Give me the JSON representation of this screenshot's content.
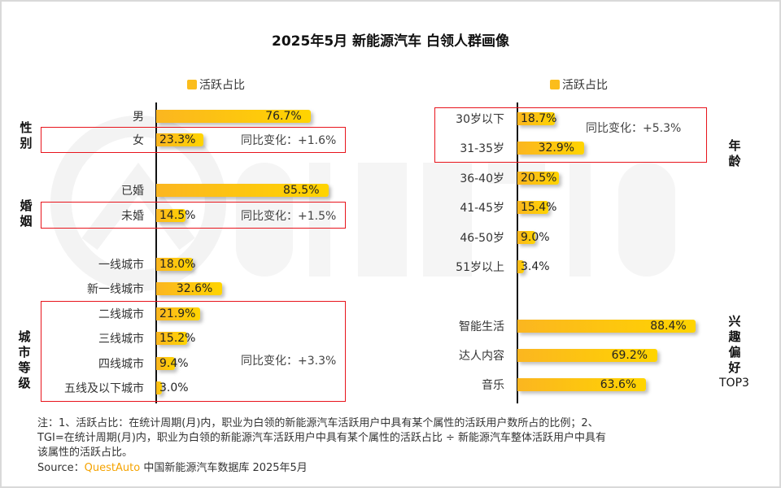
{
  "title": "2025年5月 新能源汽车 白领人群画像",
  "watermark": "QUESTAUTO",
  "chart_data": [
    {
      "type": "bar",
      "orientation": "horizontal",
      "legend": "活跃占比",
      "legend_position": "top",
      "unit": "%",
      "groups": [
        {
          "name": "性别",
          "categories": [
            "男",
            "女"
          ],
          "values": [
            76.7,
            23.3
          ],
          "change": {
            "label": "同比变化：+1.6%",
            "applies_to": [
              "女"
            ]
          }
        },
        {
          "name": "婚姻",
          "categories": [
            "已婚",
            "未婚"
          ],
          "values": [
            85.5,
            14.5
          ],
          "change": {
            "label": "同比变化：+1.5%",
            "applies_to": [
              "未婚"
            ]
          }
        },
        {
          "name": "城市等级",
          "categories": [
            "一线城市",
            "新一线城市",
            "二线城市",
            "三线城市",
            "四线城市",
            "五线及以下城市"
          ],
          "values": [
            18.0,
            32.6,
            21.9,
            15.2,
            9.4,
            3.0
          ],
          "change": {
            "label": "同比变化：+3.3%",
            "applies_to": [
              "二线城市",
              "三线城市",
              "四线城市",
              "五线及以下城市"
            ]
          }
        }
      ]
    },
    {
      "type": "bar",
      "orientation": "horizontal",
      "legend": "活跃占比",
      "legend_position": "top",
      "unit": "%",
      "groups": [
        {
          "name": "年龄",
          "categories": [
            "30岁以下",
            "31-35岁",
            "36-40岁",
            "41-45岁",
            "46-50岁",
            "51岁以上"
          ],
          "values": [
            18.7,
            32.9,
            20.5,
            15.4,
            9.0,
            3.4
          ],
          "change": {
            "label": "同比变化：+5.3%",
            "applies_to": [
              "30岁以下",
              "31-35岁"
            ]
          }
        },
        {
          "name": "兴趣偏好TOP3",
          "categories": [
            "智能生活",
            "达人内容",
            "音乐"
          ],
          "values": [
            88.4,
            69.2,
            63.6
          ]
        }
      ]
    }
  ],
  "colors": {
    "bar_start": "#fbb620",
    "bar_end": "#ffd400",
    "highlight_box": "#e8141c"
  },
  "notes": {
    "line1": "注：1、活跃占比：在统计周期(月)内，职业为白领的新能源汽车活跃用户中具有某个属性的活跃用户数所占的比例；2、",
    "line2": "TGI=在统计周期(月)内，职业为白领的新能源汽车活跃用户中具有某个属性的活跃占比 ÷ 新能源汽车整体活跃用户中具有",
    "line3": "该属性的活跃占比。",
    "source_prefix": "Source：",
    "source_brand": "QuestAuto",
    "source_rest": " 中国新能源汽车数据库 2025年5月"
  }
}
